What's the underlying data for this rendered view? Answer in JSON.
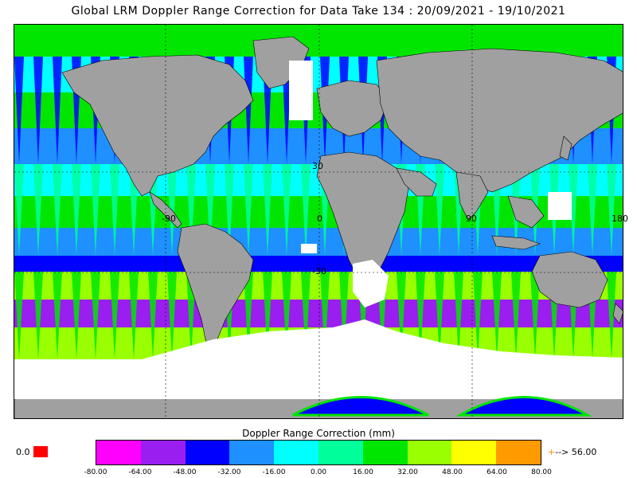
{
  "title": "Global LRM Doppler Range Correction for Data Take 134 : 20/09/2021 - 19/10/2021",
  "colorbar": {
    "title": "Doppler Range Correction (mm)",
    "tick_labels": [
      "-80.00",
      "-64.00",
      "-48.00",
      "-32.00",
      "-16.00",
      "0.00",
      "16.00",
      "32.00",
      "48.00",
      "64.00",
      "80.00"
    ],
    "colors": [
      "#ff00ff",
      "#9a1ef0",
      "#0000ff",
      "#1e90ff",
      "#00ffff",
      "#00ff9a",
      "#00e600",
      "#9aff00",
      "#ffff00",
      "#ff9a00"
    ],
    "zero_label": "0.0",
    "zero_color": "#ff0000",
    "overflow_label": "--> 56.00",
    "overflow_arrow": "+",
    "overflow_color": "#ff8c00"
  },
  "map": {
    "lat_labels": [
      "30",
      "-30"
    ],
    "lon_labels": [
      "-90",
      "0",
      "90",
      "180"
    ],
    "land_color": "#a0a0a0",
    "no_data_color": "#ffffff"
  }
}
